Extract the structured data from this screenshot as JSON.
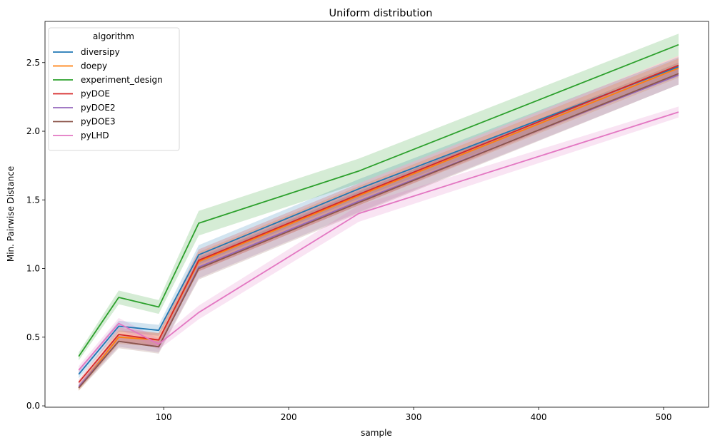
{
  "chart_data": {
    "type": "line",
    "title": "Uniform distribution",
    "xlabel": "sample",
    "ylabel": "Min. Pairwise Distance",
    "xlim": [
      5,
      536
    ],
    "ylim": [
      -0.01,
      2.8
    ],
    "xticks": [
      100,
      200,
      300,
      400,
      500
    ],
    "yticks": [
      0.0,
      0.5,
      1.0,
      1.5,
      2.0,
      2.5
    ],
    "grid": false,
    "legend": {
      "title": "algorithm",
      "placement": "top-left"
    },
    "x": [
      32,
      64,
      96,
      128,
      256,
      512
    ],
    "series": [
      {
        "name": "diversipy",
        "color": "#1f77b4",
        "values": [
          0.23,
          0.58,
          0.55,
          1.1,
          1.58,
          2.47
        ],
        "band": [
          0.03,
          0.04,
          0.04,
          0.07,
          0.07,
          0.07
        ]
      },
      {
        "name": "doepy",
        "color": "#ff7f0e",
        "values": [
          0.13,
          0.5,
          0.48,
          1.05,
          1.53,
          2.46
        ],
        "band": [
          0.02,
          0.05,
          0.05,
          0.07,
          0.07,
          0.07
        ]
      },
      {
        "name": "experiment_design",
        "color": "#2ca02c",
        "values": [
          0.36,
          0.79,
          0.72,
          1.33,
          1.71,
          2.63
        ],
        "band": [
          0.03,
          0.05,
          0.05,
          0.09,
          0.09,
          0.08
        ]
      },
      {
        "name": "pyDOE",
        "color": "#d62728",
        "values": [
          0.17,
          0.52,
          0.48,
          1.06,
          1.54,
          2.48
        ],
        "band": [
          0.02,
          0.05,
          0.05,
          0.08,
          0.08,
          0.07
        ]
      },
      {
        "name": "pyDOE2",
        "color": "#9467bd",
        "values": [
          0.14,
          0.47,
          0.43,
          1.01,
          1.49,
          2.41
        ],
        "band": [
          0.02,
          0.04,
          0.04,
          0.08,
          0.08,
          0.07
        ]
      },
      {
        "name": "pyDOE3",
        "color": "#8c564b",
        "values": [
          0.13,
          0.47,
          0.43,
          1.0,
          1.48,
          2.42
        ],
        "band": [
          0.02,
          0.05,
          0.05,
          0.08,
          0.08,
          0.08
        ]
      },
      {
        "name": "pyLHD",
        "color": "#e377c2",
        "values": [
          0.26,
          0.6,
          0.45,
          0.68,
          1.4,
          2.14
        ],
        "band": [
          0.03,
          0.04,
          0.04,
          0.05,
          0.06,
          0.04
        ]
      }
    ]
  }
}
